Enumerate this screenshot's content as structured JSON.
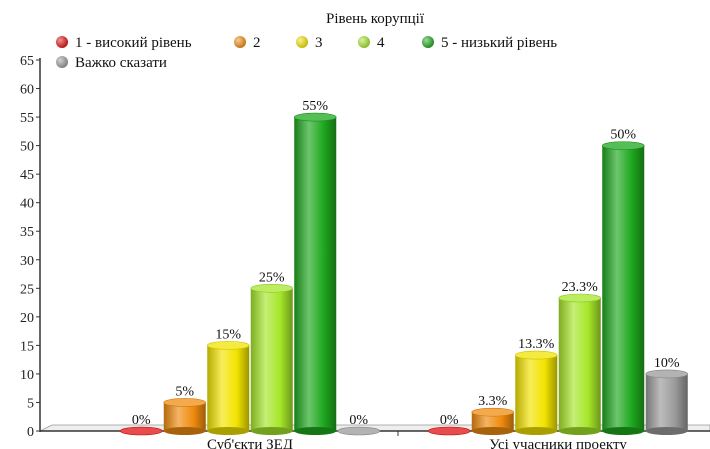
{
  "chart_data": {
    "type": "bar",
    "title": "",
    "legend_title": "Рівень корупції",
    "legend_position": "top",
    "categories": [
      "Суб'єкти ЗЕД",
      "Усі учасники проекту"
    ],
    "series": [
      {
        "name": "1 - високий рівень",
        "color": "#e01010",
        "values": [
          0,
          0
        ],
        "labels": [
          "0%",
          "0%"
        ]
      },
      {
        "name": "2",
        "color": "#f08c10",
        "values": [
          5,
          3.3
        ],
        "labels": [
          "5%",
          "3.3%"
        ]
      },
      {
        "name": "3",
        "color": "#f2e400",
        "values": [
          15,
          13.3
        ],
        "labels": [
          "15%",
          "13.3%"
        ]
      },
      {
        "name": "4",
        "color": "#a6e62a",
        "values": [
          25,
          23.3
        ],
        "labels": [
          "25%",
          "23.3%"
        ]
      },
      {
        "name": "5 - низький рівень",
        "color": "#1ea81e",
        "values": [
          55,
          50
        ],
        "labels": [
          "55%",
          "50%"
        ]
      },
      {
        "name": "Важко сказати",
        "color": "#9a9a9a",
        "values": [
          0,
          10
        ],
        "labels": [
          "0%",
          "10%"
        ]
      }
    ],
    "ylim": [
      0,
      65
    ],
    "yticks": [
      0,
      5,
      10,
      15,
      20,
      25,
      30,
      35,
      40,
      45,
      50,
      55,
      60,
      65
    ],
    "xlabel": "",
    "ylabel": "",
    "grid": false
  }
}
